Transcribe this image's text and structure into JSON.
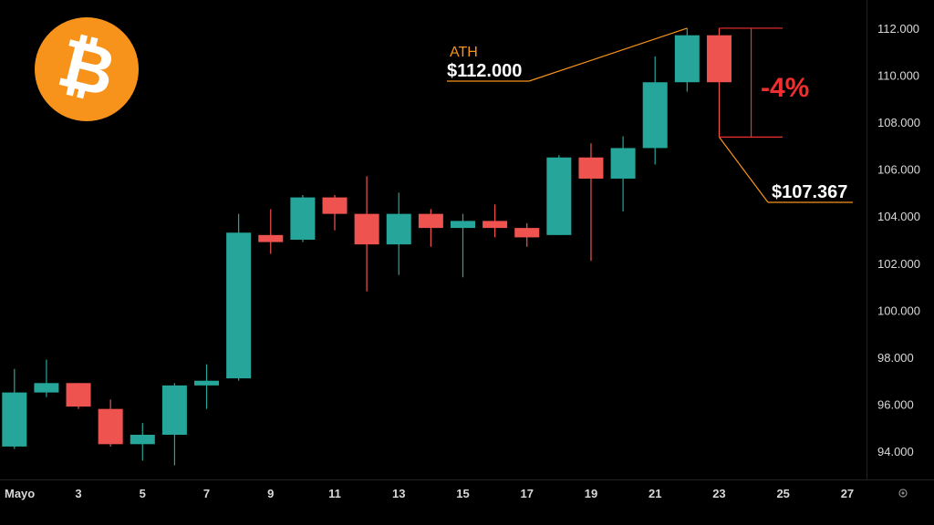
{
  "colors": {
    "background": "#000000",
    "up": "#26a69a",
    "down": "#ef5350",
    "accent_orange": "#f7931a",
    "drop_red": "#ef2f2f",
    "axis_text": "#d9d9d9"
  },
  "logo": {
    "icon": "bitcoin-logo-icon",
    "symbol": "₿"
  },
  "axis_settings_icon": "gear-icon",
  "annotations": {
    "ath_label": "ATH",
    "ath_price": "$112.000",
    "low_price": "$107.367",
    "drop_pct": "-4%"
  },
  "chart_data": {
    "type": "candlestick",
    "title": "",
    "xlabel": "",
    "ylabel": "",
    "ylim": [
      92800,
      113200
    ],
    "xlim": [
      0.55,
      27.6
    ],
    "y_ticks": [
      "94.000",
      "96.000",
      "98.000",
      "100.000",
      "102.000",
      "104.000",
      "106.000",
      "108.000",
      "110.000",
      "112.000"
    ],
    "y_tick_values": [
      94000,
      96000,
      98000,
      100000,
      102000,
      104000,
      106000,
      108000,
      110000,
      112000
    ],
    "x_ticks": [
      "Mayo",
      "3",
      "5",
      "7",
      "9",
      "11",
      "13",
      "15",
      "17",
      "19",
      "21",
      "23",
      "25",
      "27"
    ],
    "x_tick_values": [
      1,
      3,
      5,
      7,
      9,
      11,
      13,
      15,
      17,
      19,
      21,
      23,
      25,
      27
    ],
    "grid": false,
    "candles": [
      {
        "day": 1,
        "open": 94200,
        "high": 97500,
        "low": 94100,
        "close": 96500
      },
      {
        "day": 2,
        "open": 96500,
        "high": 97900,
        "low": 96300,
        "close": 96900
      },
      {
        "day": 3,
        "open": 96900,
        "high": 96900,
        "low": 95800,
        "close": 95900
      },
      {
        "day": 4,
        "open": 95800,
        "high": 96200,
        "low": 94200,
        "close": 94300
      },
      {
        "day": 5,
        "open": 94300,
        "high": 95200,
        "low": 93600,
        "close": 94700
      },
      {
        "day": 6,
        "open": 94700,
        "high": 96900,
        "low": 93400,
        "close": 96800
      },
      {
        "day": 7,
        "open": 96800,
        "high": 97700,
        "low": 95800,
        "close": 97000
      },
      {
        "day": 8,
        "open": 97100,
        "high": 104100,
        "low": 97000,
        "close": 103300
      },
      {
        "day": 9,
        "open": 103200,
        "high": 104300,
        "low": 102400,
        "close": 102900
      },
      {
        "day": 10,
        "open": 103000,
        "high": 104900,
        "low": 102900,
        "close": 104800
      },
      {
        "day": 11,
        "open": 104800,
        "high": 104900,
        "low": 103400,
        "close": 104100
      },
      {
        "day": 12,
        "open": 104100,
        "high": 105700,
        "low": 100800,
        "close": 102800
      },
      {
        "day": 13,
        "open": 102800,
        "high": 105000,
        "low": 101500,
        "close": 104100
      },
      {
        "day": 14,
        "open": 104100,
        "high": 104300,
        "low": 102700,
        "close": 103500
      },
      {
        "day": 15,
        "open": 103500,
        "high": 104100,
        "low": 101400,
        "close": 103800
      },
      {
        "day": 16,
        "open": 103800,
        "high": 104500,
        "low": 103100,
        "close": 103500
      },
      {
        "day": 17,
        "open": 103500,
        "high": 103700,
        "low": 102700,
        "close": 103100
      },
      {
        "day": 18,
        "open": 103200,
        "high": 106600,
        "low": 103200,
        "close": 106500
      },
      {
        "day": 19,
        "open": 106500,
        "high": 107100,
        "low": 102100,
        "close": 105600
      },
      {
        "day": 20,
        "open": 105600,
        "high": 107400,
        "low": 104200,
        "close": 106900
      },
      {
        "day": 21,
        "open": 106900,
        "high": 110800,
        "low": 106200,
        "close": 109700
      },
      {
        "day": 22,
        "open": 109700,
        "high": 112000,
        "low": 109300,
        "close": 111700
      },
      {
        "day": 23,
        "open": 111700,
        "high": 112000,
        "low": 107367,
        "close": 109700
      }
    ],
    "bars": [
      {
        "name": "ath-line",
        "x": 24.0,
        "value": 112000
      },
      {
        "name": "low-line",
        "x": 24.0,
        "value": 107367
      }
    ]
  }
}
